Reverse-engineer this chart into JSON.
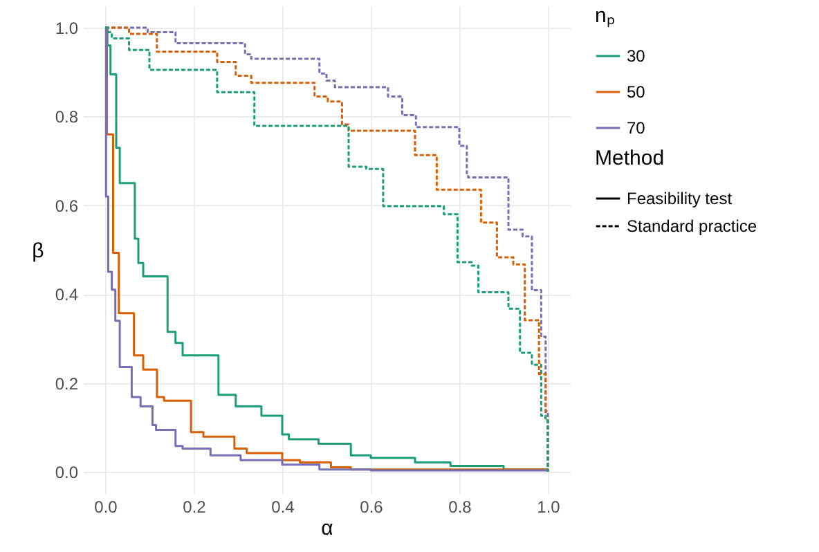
{
  "chart_data": {
    "type": "step",
    "xlabel": "α",
    "ylabel": "β",
    "legend_title": "nₚ",
    "legend": "right",
    "grid": true,
    "xlim": [
      -0.05,
      1.05
    ],
    "ylim": [
      -0.05,
      1.05
    ],
    "xticks": [
      {
        "value": 0,
        "label": "0.0"
      },
      {
        "value": 0.2,
        "label": "0.2"
      },
      {
        "value": 0.4,
        "label": "0.4"
      },
      {
        "value": 0.6,
        "label": "0.6"
      },
      {
        "value": 0.8,
        "label": "0.8"
      },
      {
        "value": 1,
        "label": "1.0"
      }
    ],
    "yticks": [
      {
        "value": 0,
        "label": "0.0"
      },
      {
        "value": 0.2,
        "label": "0.2"
      },
      {
        "value": 0.4,
        "label": "0.4"
      },
      {
        "value": 0.6,
        "label": "0.6"
      },
      {
        "value": 0.8,
        "label": "0.8"
      },
      {
        "value": 1,
        "label": "1.0"
      }
    ],
    "annotations": [
      "Method",
      "Feasibility test",
      "Standard practice"
    ],
    "series": [
      {
        "name": "30",
        "color": "#1b9e77",
        "line_style": "solid",
        "x": [
          0,
          0.005,
          0.012,
          0.025,
          0.033,
          0.067,
          0.075,
          0.086,
          0.141,
          0.159,
          0.175,
          0.256,
          0.295,
          0.353,
          0.4,
          0.415,
          0.482,
          0.555,
          0.6,
          0.7,
          0.78,
          0.9,
          1
        ],
        "values": [
          1,
          0.96,
          0.895,
          0.73,
          0.65,
          0.525,
          0.47,
          0.44,
          0.315,
          0.29,
          0.262,
          0.173,
          0.147,
          0.126,
          0.084,
          0.073,
          0.063,
          0.037,
          0.031,
          0.021,
          0.013,
          0.005,
          0
        ]
      },
      {
        "name": "50",
        "color": "#d95f02",
        "line_style": "solid",
        "x": [
          0,
          0.004,
          0.018,
          0.031,
          0.065,
          0.086,
          0.117,
          0.133,
          0.194,
          0.222,
          0.292,
          0.32,
          0.4,
          0.44,
          0.51,
          0.555,
          1
        ],
        "values": [
          1,
          0.76,
          0.493,
          0.357,
          0.262,
          0.23,
          0.168,
          0.16,
          0.089,
          0.079,
          0.052,
          0.042,
          0.026,
          0.021,
          0.01,
          0.005,
          0
        ]
      },
      {
        "name": "70",
        "color": "#7570b3",
        "line_style": "solid",
        "x": [
          0,
          0.002,
          0.007,
          0.015,
          0.023,
          0.033,
          0.06,
          0.08,
          0.107,
          0.115,
          0.159,
          0.175,
          0.238,
          0.306,
          0.4,
          0.484,
          0.6,
          1
        ],
        "values": [
          1,
          0.62,
          0.45,
          0.41,
          0.34,
          0.236,
          0.168,
          0.147,
          0.105,
          0.094,
          0.058,
          0.052,
          0.037,
          0.026,
          0.016,
          0.005,
          0.003,
          0
        ]
      },
      {
        "color": "#1b9e77",
        "line_style": "dashed",
        "x": [
          0,
          0.007,
          0.015,
          0.054,
          0.1,
          0.253,
          0.337,
          0.55,
          0.59,
          0.628,
          0.765,
          0.796,
          0.828,
          0.843,
          0.911,
          0.937,
          0.964,
          0.985,
          0.995,
          1
        ],
        "values": [
          1,
          0.99,
          0.976,
          0.95,
          0.905,
          0.855,
          0.779,
          0.687,
          0.682,
          0.598,
          0.58,
          0.472,
          0.464,
          0.404,
          0.367,
          0.268,
          0.241,
          0.126,
          0.115,
          0
        ]
      },
      {
        "color": "#d95f02",
        "line_style": "dashed",
        "x": [
          0,
          0.054,
          0.117,
          0.253,
          0.295,
          0.33,
          0.473,
          0.503,
          0.535,
          0.55,
          0.7,
          0.749,
          0.849,
          0.885,
          0.922,
          0.948,
          0.98,
          0.995,
          1
        ],
        "values": [
          1,
          0.986,
          0.946,
          0.923,
          0.892,
          0.876,
          0.845,
          0.834,
          0.782,
          0.768,
          0.713,
          0.635,
          0.561,
          0.483,
          0.467,
          0.341,
          0.22,
          0.115,
          0
        ]
      },
      {
        "color": "#7570b3",
        "line_style": "dashed",
        "x": [
          0,
          0.096,
          0.159,
          0.316,
          0.33,
          0.484,
          0.5,
          0.519,
          0.639,
          0.671,
          0.702,
          0.8,
          0.817,
          0.82,
          0.911,
          0.943,
          0.964,
          0.985,
          0.995,
          1
        ],
        "values": [
          1,
          0.99,
          0.965,
          0.94,
          0.93,
          0.897,
          0.881,
          0.866,
          0.845,
          0.803,
          0.776,
          0.734,
          0.672,
          0.663,
          0.545,
          0.53,
          0.409,
          0.304,
          0.136,
          0
        ]
      }
    ]
  }
}
